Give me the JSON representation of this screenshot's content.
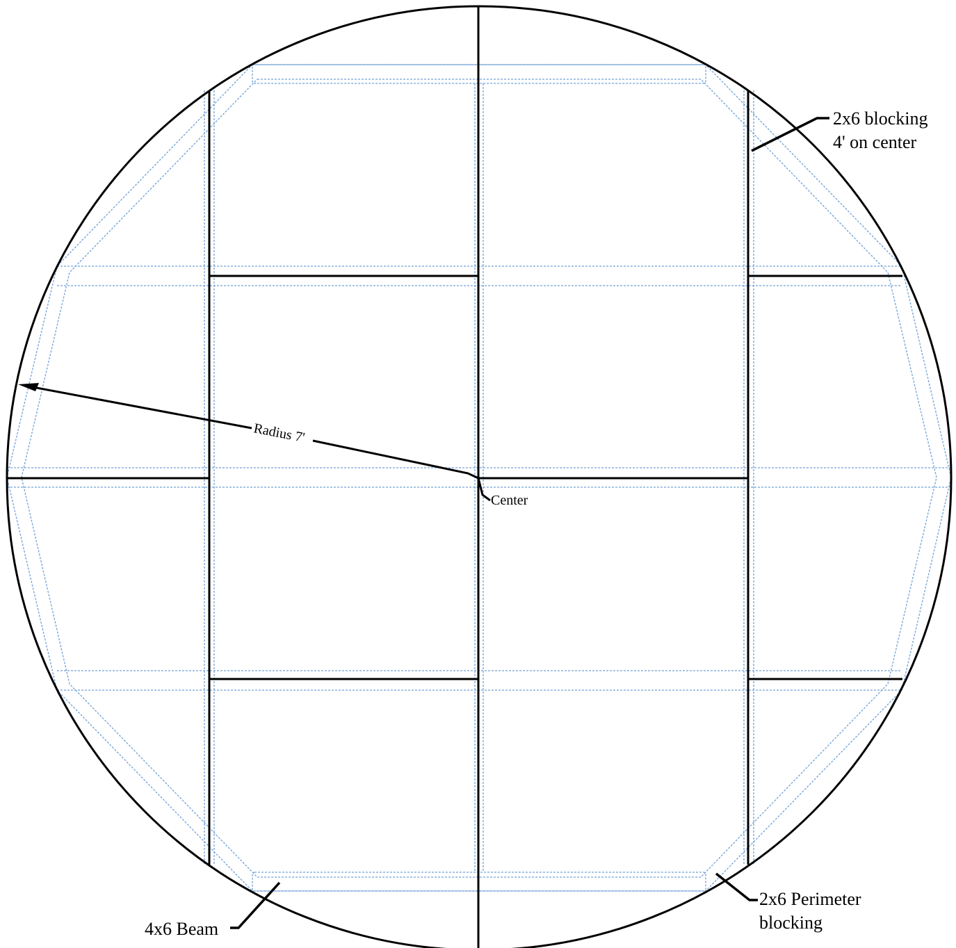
{
  "labels": {
    "blocking_line1": "2x6 blocking",
    "blocking_line2": "4' on center",
    "radius": "Radius 7'",
    "center": "Center",
    "perimeter_line1": "2x6 Perimeter",
    "perimeter_line2": "blocking",
    "beam": "4x6 Beam"
  },
  "colors": {
    "beam_stroke": "#000000",
    "blocking_stroke": "#6fa0d8"
  }
}
